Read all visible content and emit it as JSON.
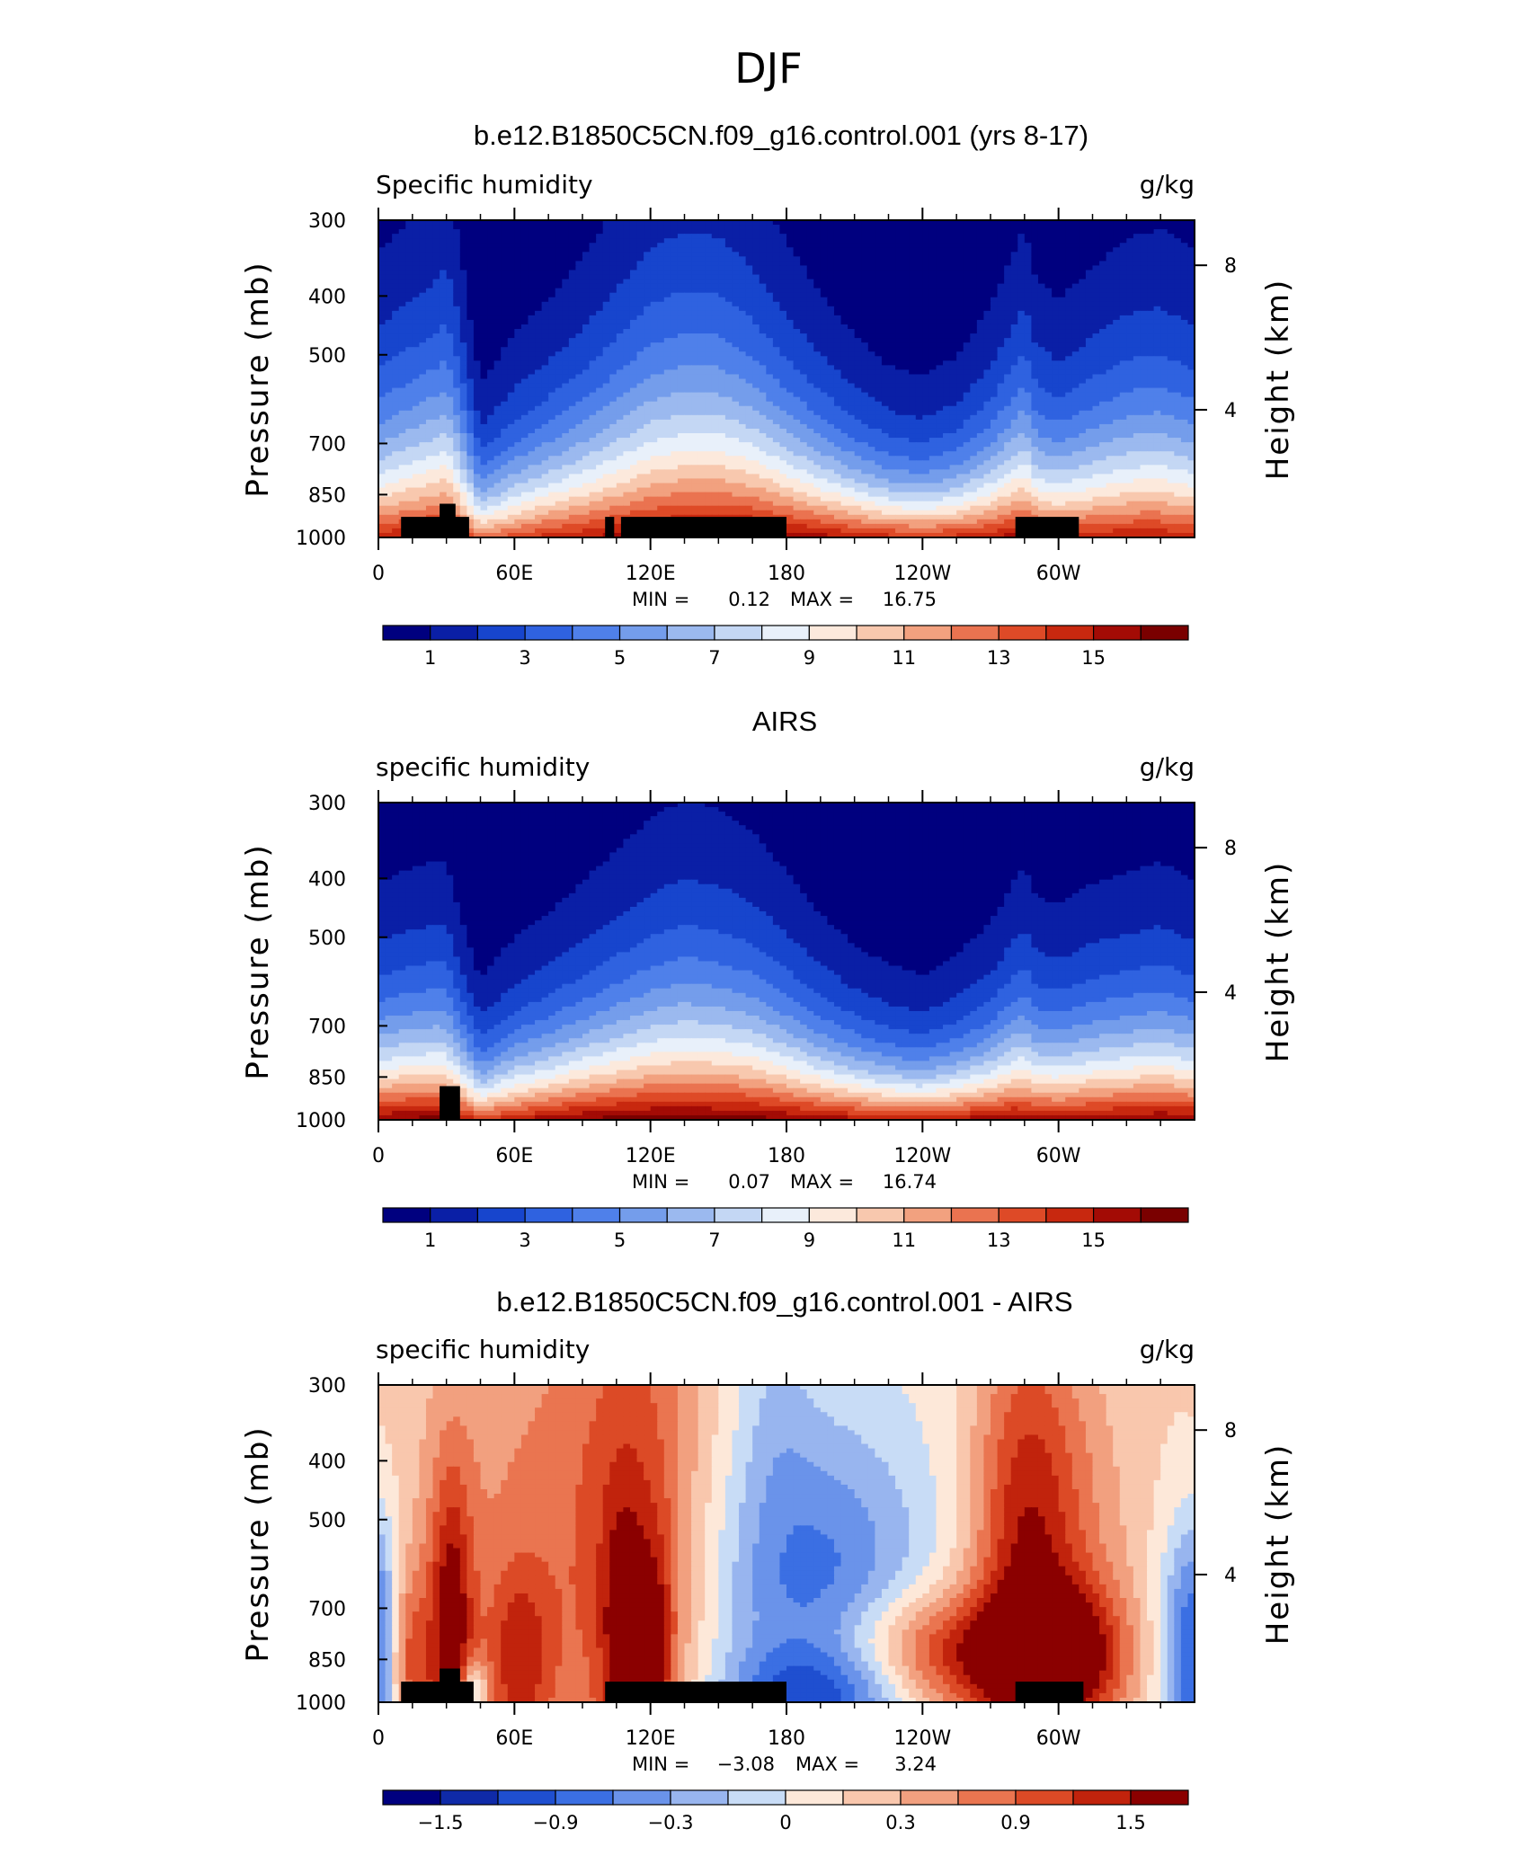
{
  "figure": {
    "title": "DJF"
  },
  "panels": [
    {
      "title": "b.e12.B1850C5CN.f09_g16.control.001 (yrs 8-17)",
      "left_label": "Specific humidity",
      "right_label": "g/kg",
      "ylabel": "Pressure (mb)",
      "y2label": "Height (km)",
      "min_text": "MIN =",
      "min_value": "0.12",
      "max_text": "MAX =",
      "max_value": "16.75"
    },
    {
      "title": "AIRS",
      "left_label": "specific humidity",
      "right_label": "g/kg",
      "ylabel": "Pressure (mb)",
      "y2label": "Height (km)",
      "min_text": "MIN =",
      "min_value": "0.07",
      "max_text": "MAX =",
      "max_value": "16.74"
    },
    {
      "title": "b.e12.B1850C5CN.f09_g16.control.001 - AIRS",
      "left_label": "specific humidity",
      "right_label": "g/kg",
      "ylabel": "Pressure (mb)",
      "y2label": "Height (km)",
      "min_text": "MIN =",
      "min_value": "−3.08",
      "max_text": "MAX =",
      "max_value": "3.24"
    }
  ],
  "colors": {
    "seq": [
      "#00007f",
      "#0a1fa6",
      "#1745cd",
      "#2f62e0",
      "#4f80ea",
      "#749deb",
      "#9bb9ef",
      "#c4d7f4",
      "#e8f0fa",
      "#fce9dc",
      "#f8c8ae",
      "#f2a17f",
      "#ea7350",
      "#de4a27",
      "#c8280f",
      "#a30b05",
      "#7a0000"
    ],
    "diff": [
      "#00007f",
      "#0f2aa8",
      "#1f4fd0",
      "#3b6fe3",
      "#6a93ea",
      "#98b5ef",
      "#c8dcf6",
      "#fde8d9",
      "#f9c7ad",
      "#f2a07f",
      "#ea7550",
      "#dc4a26",
      "#c1230c",
      "#8b0000"
    ]
  },
  "chart_data": [
    {
      "type": "heatmap",
      "title": "b.e12.B1850C5CN.f09_g16.control.001 (yrs 8-17)",
      "variable": "Specific humidity",
      "units": "g/kg",
      "x_ticks": [
        "0",
        "60E",
        "120E",
        "180",
        "120W",
        "60W"
      ],
      "x_tick_lon": [
        0,
        60,
        120,
        180,
        240,
        300
      ],
      "xlim": [
        0,
        360
      ],
      "y_ticks": [
        300,
        400,
        500,
        700,
        850,
        1000
      ],
      "ylim": [
        1000,
        300
      ],
      "y_scale": "log",
      "y2_ticks": [
        8,
        4
      ],
      "y2_tick_pressure": [
        356,
        616
      ],
      "colorbar_levels": [
        1,
        2,
        3,
        4,
        5,
        6,
        7,
        8,
        9,
        10,
        11,
        12,
        13,
        14,
        15,
        16
      ],
      "colorbar_labels": [
        "1",
        "3",
        "5",
        "7",
        "9",
        "11",
        "13",
        "15"
      ],
      "min": 0.12,
      "max": 16.75,
      "field": {
        "x": [
          0,
          10,
          25,
          30,
          35,
          45,
          60,
          75,
          90,
          105,
          120,
          135,
          150,
          165,
          180,
          195,
          210,
          225,
          240,
          255,
          270,
          280,
          285,
          290,
          300,
          315,
          330,
          345,
          360
        ],
        "q1000": [
          14.5,
          15.0,
          15.5,
          15.5,
          14.5,
          12.5,
          13.5,
          14.5,
          15.0,
          15.5,
          16.0,
          16.3,
          16.5,
          16.4,
          16.0,
          15.5,
          15.0,
          14.5,
          14.3,
          14.5,
          15.0,
          15.5,
          15.5,
          14.8,
          14.5,
          14.8,
          15.0,
          15.0,
          14.5
        ],
        "H": [
          3.0,
          3.2,
          3.5,
          3.7,
          3.2,
          1.7,
          2.2,
          2.5,
          2.9,
          3.4,
          3.9,
          4.1,
          4.0,
          3.6,
          3.0,
          2.5,
          2.1,
          1.8,
          1.7,
          1.9,
          2.4,
          2.9,
          3.2,
          2.7,
          2.5,
          2.8,
          3.1,
          3.2,
          3.0
        ]
      },
      "masks": [
        {
          "lon": [
            10,
            40
          ],
          "p_top": 925
        },
        {
          "lon": [
            27,
            34
          ],
          "p_top": 880
        },
        {
          "lon": [
            100,
            104
          ],
          "p_top": 925
        },
        {
          "lon": [
            107,
            180
          ],
          "p_top": 925
        },
        {
          "lon": [
            281,
            309
          ],
          "p_top": 925
        }
      ]
    },
    {
      "type": "heatmap",
      "title": "AIRS",
      "variable": "specific humidity",
      "units": "g/kg",
      "x_ticks": [
        "0",
        "60E",
        "120E",
        "180",
        "120W",
        "60W"
      ],
      "x_tick_lon": [
        0,
        60,
        120,
        180,
        240,
        300
      ],
      "xlim": [
        0,
        360
      ],
      "y_ticks": [
        300,
        400,
        500,
        700,
        850,
        1000
      ],
      "ylim": [
        1000,
        300
      ],
      "y_scale": "log",
      "y2_ticks": [
        8,
        4
      ],
      "y2_tick_pressure": [
        356,
        616
      ],
      "colorbar_levels": [
        1,
        2,
        3,
        4,
        5,
        6,
        7,
        8,
        9,
        10,
        11,
        12,
        13,
        14,
        15,
        16
      ],
      "colorbar_labels": [
        "1",
        "3",
        "5",
        "7",
        "9",
        "11",
        "13",
        "15"
      ],
      "min": 0.07,
      "max": 16.74,
      "field": {
        "x": [
          0,
          10,
          25,
          30,
          35,
          45,
          60,
          75,
          90,
          105,
          120,
          135,
          150,
          165,
          180,
          195,
          210,
          225,
          240,
          255,
          270,
          280,
          285,
          290,
          300,
          315,
          330,
          345,
          360
        ],
        "q1000": [
          16.0,
          16.3,
          16.5,
          16.2,
          15.5,
          14.0,
          15.0,
          15.8,
          16.2,
          16.5,
          16.7,
          16.7,
          16.6,
          16.5,
          16.2,
          15.8,
          15.5,
          15.2,
          15.0,
          15.3,
          15.8,
          16.0,
          15.7,
          15.5,
          15.5,
          15.8,
          16.0,
          16.2,
          16.0
        ],
        "H": [
          2.4,
          2.5,
          2.6,
          2.6,
          2.2,
          1.5,
          1.9,
          2.1,
          2.4,
          2.7,
          3.0,
          3.2,
          3.1,
          2.9,
          2.5,
          2.1,
          1.8,
          1.6,
          1.5,
          1.7,
          2.0,
          2.4,
          2.6,
          2.3,
          2.2,
          2.4,
          2.5,
          2.6,
          2.4
        ]
      },
      "masks": [
        {
          "lon": [
            27,
            36
          ],
          "p_top": 880
        }
      ]
    },
    {
      "type": "heatmap",
      "title": "b.e12.B1850C5CN.f09_g16.control.001 - AIRS",
      "variable": "specific humidity",
      "units": "g/kg",
      "x_ticks": [
        "0",
        "60E",
        "120E",
        "180",
        "120W",
        "60W"
      ],
      "x_tick_lon": [
        0,
        60,
        120,
        180,
        240,
        300
      ],
      "xlim": [
        0,
        360
      ],
      "y_ticks": [
        300,
        400,
        500,
        700,
        850,
        1000
      ],
      "ylim": [
        1000,
        300
      ],
      "y_scale": "log",
      "y2_ticks": [
        8,
        4
      ],
      "y2_tick_pressure": [
        356,
        616
      ],
      "colorbar_levels": [
        -1.8,
        -1.5,
        -1.2,
        -0.9,
        -0.6,
        -0.3,
        0,
        0.3,
        0.6,
        0.9,
        1.2,
        1.5,
        1.8
      ],
      "colorbar_labels": [
        "−1.5",
        "−0.9",
        "−0.3",
        "0",
        "0.3",
        "0.9",
        "1.5"
      ],
      "min": -3.08,
      "max": 3.24,
      "field": {
        "base": 0.15,
        "features": [
          {
            "lon": 80,
            "p": 560,
            "slon": 50,
            "sp": 1.0,
            "amp": 0.85
          },
          {
            "lon": 115,
            "p": 540,
            "slon": 18,
            "sp": 0.8,
            "amp": 0.75
          },
          {
            "lon": 32,
            "p": 780,
            "slon": 7,
            "sp": 0.45,
            "amp": 1.5
          },
          {
            "lon": 12,
            "p": 860,
            "slon": 8,
            "sp": 0.25,
            "amp": 1.0
          },
          {
            "lon": 62,
            "p": 850,
            "slon": 10,
            "sp": 0.25,
            "amp": 0.9
          },
          {
            "lon": 108,
            "p": 830,
            "slon": 6,
            "sp": 0.35,
            "amp": 1.0
          },
          {
            "lon": 122,
            "p": 840,
            "slon": 6,
            "sp": 0.3,
            "amp": 1.0
          },
          {
            "lon": 192,
            "p": 700,
            "slon": 34,
            "sp": 0.5,
            "amp": -1.3
          },
          {
            "lon": 195,
            "p": 960,
            "slon": 30,
            "sp": 0.12,
            "amp": -0.9
          },
          {
            "lon": 175,
            "p": 300,
            "slon": 12,
            "sp": 0.4,
            "amp": -0.35
          },
          {
            "lon": 255,
            "p": 840,
            "slon": 40,
            "sp": 0.17,
            "amp": 1.6
          },
          {
            "lon": 283,
            "p": 600,
            "slon": 16,
            "sp": 0.7,
            "amp": 1.1
          },
          {
            "lon": 300,
            "p": 560,
            "slon": 22,
            "sp": 0.65,
            "amp": 0.8
          },
          {
            "lon": 310,
            "p": 840,
            "slon": 14,
            "sp": 0.2,
            "amp": 0.9
          },
          {
            "lon": 355,
            "p": 830,
            "slon": 9,
            "sp": 0.35,
            "amp": -1.1
          },
          {
            "lon": 2,
            "p": 830,
            "slon": 6,
            "sp": 0.35,
            "amp": -0.9
          },
          {
            "lon": 42,
            "p": 960,
            "slon": 4,
            "sp": 0.08,
            "amp": -1.2
          }
        ]
      },
      "masks": [
        {
          "lon": [
            10,
            42
          ],
          "p_top": 925
        },
        {
          "lon": [
            27,
            36
          ],
          "p_top": 880
        },
        {
          "lon": [
            100,
            180
          ],
          "p_top": 925
        },
        {
          "lon": [
            281,
            311
          ],
          "p_top": 925
        }
      ]
    }
  ]
}
